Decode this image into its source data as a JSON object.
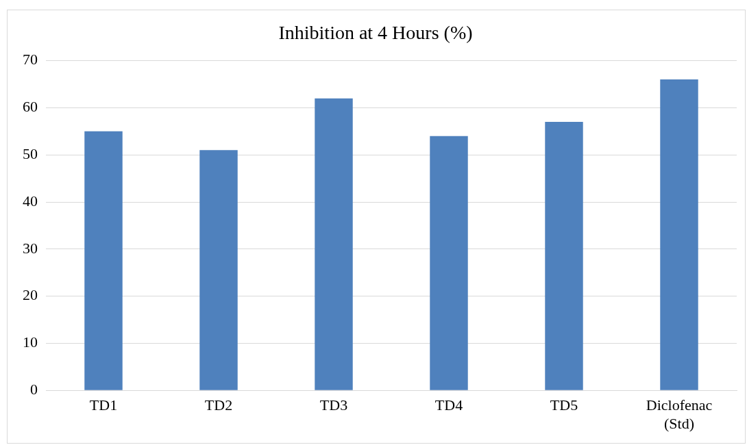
{
  "chart_data": {
    "type": "bar",
    "title": "Inhibition at 4 Hours (%)",
    "categories": [
      "TD1",
      "TD2",
      "TD3",
      "TD4",
      "TD5",
      "Diclofenac (Std)"
    ],
    "values": [
      55,
      51,
      62,
      54,
      57,
      66
    ],
    "color": "#4f81bd",
    "ylim": [
      0,
      70
    ],
    "yticks": [
      0,
      10,
      20,
      30,
      40,
      50,
      60,
      70
    ],
    "grid": "y",
    "legend": false
  }
}
